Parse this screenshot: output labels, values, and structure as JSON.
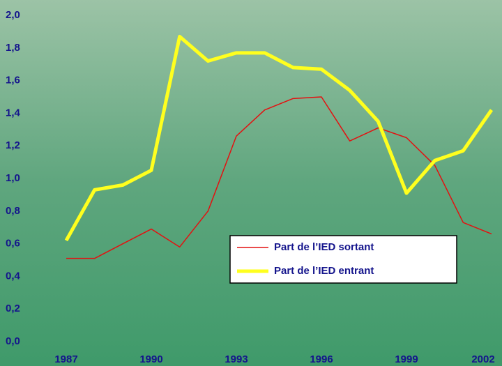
{
  "chart_data": {
    "type": "line",
    "x": [
      1987,
      1988,
      1989,
      1990,
      1991,
      1992,
      1993,
      1994,
      1995,
      1996,
      1997,
      1998,
      1999,
      2000,
      2001,
      2002
    ],
    "series": [
      {
        "name": "Part de l’IED sortant",
        "color": "#e41010",
        "width": 1.5,
        "values": [
          0.51,
          0.51,
          0.6,
          0.69,
          0.58,
          0.8,
          1.26,
          1.42,
          1.49,
          1.5,
          1.23,
          1.31,
          1.25,
          1.08,
          0.73,
          0.66
        ]
      },
      {
        "name": "Part de l’IED entrant",
        "color": "#ffff1e",
        "width": 5,
        "values": [
          0.62,
          0.93,
          0.96,
          1.05,
          1.87,
          1.72,
          1.77,
          1.77,
          1.68,
          1.67,
          1.54,
          1.35,
          0.91,
          1.11,
          1.17,
          1.42
        ]
      }
    ],
    "xlim": [
      1987,
      2002
    ],
    "xticks": [
      1987,
      1990,
      1993,
      1996,
      1999,
      2002
    ],
    "ylim": [
      0,
      2
    ],
    "yticks": [
      {
        "value": 0,
        "label": "0,0"
      },
      {
        "value": 0.2,
        "label": "0,2"
      },
      {
        "value": 0.4,
        "label": "0,4"
      },
      {
        "value": 0.6,
        "label": "0,6"
      },
      {
        "value": 0.8,
        "label": "0,8"
      },
      {
        "value": 1.0,
        "label": "1,0"
      },
      {
        "value": 1.2,
        "label": "1,2"
      },
      {
        "value": 1.4,
        "label": "1,4"
      },
      {
        "value": 1.6,
        "label": "1,6"
      },
      {
        "value": 1.8,
        "label": "1,8"
      },
      {
        "value": 2.0,
        "label": "2,0"
      }
    ]
  }
}
